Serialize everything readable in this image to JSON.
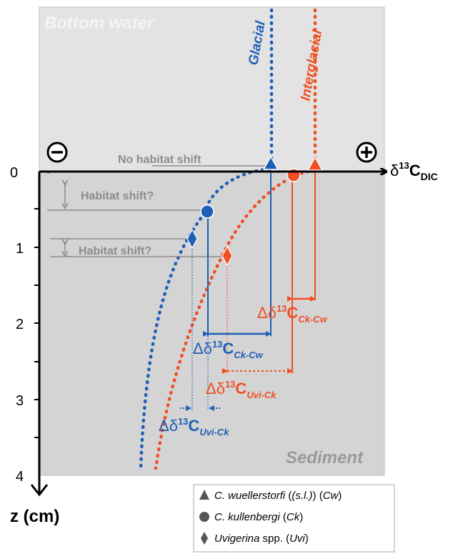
{
  "regions": {
    "bottom_water": "Bottom water",
    "sediment": "Sediment"
  },
  "signs": {
    "minus": "−",
    "plus": "+"
  },
  "axes": {
    "x_label_main": "δ",
    "x_label_sup": "13",
    "x_label_c": "C",
    "x_label_sub": "DIC",
    "y_label": "z (cm)",
    "y_ticks": [
      "0",
      "1",
      "2",
      "3",
      "4"
    ]
  },
  "curves": {
    "glacial": "Glacial",
    "interglacial": "Interglacial"
  },
  "annotations": {
    "no_shift": "No habitat shift",
    "habitat_shift_1": "Habitat shift?",
    "habitat_shift_2": "Habitat shift?"
  },
  "deltas": {
    "ck_cw_red": {
      "delta": "Δδ",
      "sup": "13",
      "c": "C",
      "sub": "Ck-Cw"
    },
    "ck_cw_blue": {
      "delta": "Δδ",
      "sup": "13",
      "c": "C",
      "sub": "Ck-Cw"
    },
    "uvi_ck_red": {
      "delta": "Δδ",
      "sup": "13",
      "c": "C",
      "sub": "Uvi-Ck"
    },
    "uvi_ck_blue": {
      "delta": "Δδ",
      "sup": "13",
      "c": "C",
      "sub": "Uvi-Ck"
    }
  },
  "legend": {
    "cw": {
      "species": "C. wuellerstorfi",
      "qual": "(s.l.)",
      "abbr": "Cw"
    },
    "ck": {
      "species": "C. kullenbergi",
      "abbr": "Ck"
    },
    "uvi": {
      "species": "Uvigerina",
      "spp": "spp.",
      "abbr": "Uvi"
    }
  },
  "colors": {
    "glacial": "#1f5fb5",
    "interglacial": "#f04e23",
    "grey_text": "#999999",
    "water_bg": "#e3e3e3",
    "sediment_bg": "#d4d4d4"
  }
}
